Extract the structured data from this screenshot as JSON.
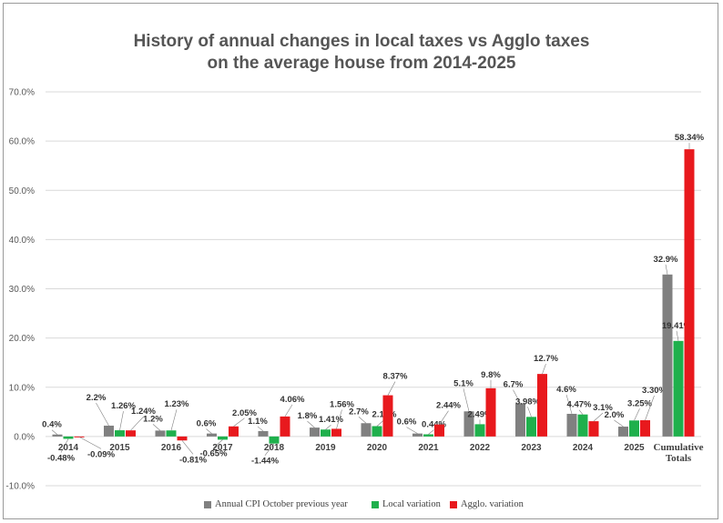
{
  "chart_data": {
    "type": "bar",
    "title_line1": "History of annual changes in local taxes vs Agglo taxes",
    "title_line2": "on the average house from 2014-2025",
    "categories": [
      "2014",
      "2015",
      "2016",
      "2017",
      "2018",
      "2019",
      "2020",
      "2021",
      "2022",
      "2023",
      "2024",
      "2025",
      "Cumulative Totals"
    ],
    "y_ticks": [
      "-10.0%",
      "0.0%",
      "10.0%",
      "20.0%",
      "30.0%",
      "40.0%",
      "50.0%",
      "60.0%",
      "70.0%"
    ],
    "ylim": [
      -10,
      70
    ],
    "grid": true,
    "legend_position": "bottom",
    "series": [
      {
        "name": "Annual CPI October previous year",
        "color": "#808080",
        "values": [
          0.4,
          2.2,
          1.2,
          0.6,
          1.1,
          1.8,
          2.7,
          0.6,
          5.1,
          6.7,
          4.6,
          2.0,
          32.9
        ],
        "labels": [
          "0.4%",
          "2.2%",
          "1.2%",
          "0.6%",
          "1.1%",
          "1.8%",
          "2.7%",
          "0.6%",
          "5.1%",
          "6.7%",
          "4.6%",
          "2.0%",
          "32.9%"
        ]
      },
      {
        "name": "Local variation",
        "color": "#1fb04c",
        "values": [
          -0.48,
          1.26,
          1.23,
          -0.65,
          -1.44,
          1.41,
          2.1,
          0.44,
          2.49,
          3.98,
          4.47,
          3.25,
          19.41
        ],
        "labels": [
          "-0.48%",
          "1.26%",
          "1.23%",
          "-0.65%",
          "-1.44%",
          "1.41%",
          "2.10%",
          "0.44%",
          "2.49%",
          "3.98%",
          "4.47%",
          "3.25%",
          "19.41%"
        ]
      },
      {
        "name": "Agglo. variation",
        "color": "#e8191d",
        "values": [
          -0.09,
          1.24,
          -0.81,
          2.05,
          4.06,
          1.56,
          8.37,
          2.44,
          9.8,
          12.7,
          3.1,
          3.3,
          58.34
        ],
        "labels": [
          "-0.09%",
          "1.24%",
          "-0.81%",
          "2.05%",
          "4.06%",
          "1.56%",
          "8.37%",
          "2.44%",
          "9.8%",
          "12.7%",
          "3.1%",
          "3.30%",
          "58.34%"
        ]
      }
    ]
  }
}
